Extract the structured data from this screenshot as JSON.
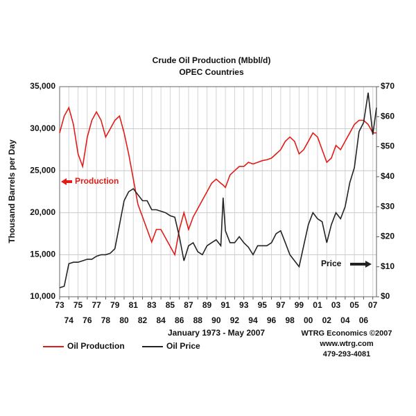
{
  "chart_data": {
    "type": "line",
    "title": "Crude Oil Production (Mbbl/d)",
    "subtitle": "OPEC Countries",
    "y_label": "Thousand Barrels per Day",
    "x_label": "January 1973 - May 2007",
    "annotations": [
      "Production",
      "Price"
    ],
    "source": [
      "WTRG Economics ©2007",
      "www.wtrg.com",
      "479-293-4081"
    ],
    "grid": true,
    "x": [
      1973,
      1973.5,
      1974,
      1974.5,
      1975,
      1975.5,
      1976,
      1976.5,
      1977,
      1977.5,
      1978,
      1978.5,
      1979,
      1979.5,
      1980,
      1980.5,
      1981,
      1981.5,
      1982,
      1982.5,
      1983,
      1983.5,
      1984,
      1984.5,
      1985,
      1985.5,
      1986,
      1986.5,
      1987,
      1987.5,
      1988,
      1988.5,
      1989,
      1989.5,
      1990,
      1990.5,
      1990.75,
      1991,
      1991.5,
      1992,
      1992.5,
      1993,
      1993.5,
      1994,
      1994.5,
      1995,
      1995.5,
      1996,
      1996.5,
      1997,
      1997.5,
      1998,
      1998.5,
      1999,
      1999.5,
      2000,
      2000.5,
      2001,
      2001.5,
      2002,
      2002.5,
      2003,
      2003.5,
      2004,
      2004.5,
      2005,
      2005.5,
      2006,
      2006.5,
      2007,
      2007.4
    ],
    "series": [
      {
        "name": "Oil Production",
        "color": "#e21b16",
        "values": [
          29500,
          31500,
          32500,
          30500,
          27000,
          25500,
          29000,
          31000,
          32000,
          31000,
          29000,
          30000,
          31000,
          31500,
          29500,
          27000,
          24000,
          21000,
          19500,
          18000,
          16500,
          18000,
          18000,
          17000,
          16000,
          15000,
          18000,
          20000,
          18000,
          19500,
          20500,
          21500,
          22500,
          23500,
          24000,
          23500,
          23300,
          23000,
          24500,
          25000,
          25500,
          25500,
          26000,
          25800,
          26000,
          26200,
          26300,
          26500,
          27000,
          27500,
          28500,
          29000,
          28500,
          27000,
          27500,
          28500,
          29500,
          29000,
          27500,
          26000,
          26500,
          28000,
          27500,
          28500,
          29500,
          30500,
          31000,
          31000,
          30500,
          29500,
          29500
        ]
      },
      {
        "name": "Oil Price",
        "color": "#222222",
        "axis": "y2",
        "values": [
          3,
          3.5,
          11,
          11.5,
          11.5,
          12,
          12.5,
          12.5,
          13.5,
          14,
          14,
          14.5,
          16,
          24,
          32,
          35,
          36,
          34,
          32,
          32,
          29,
          29,
          28.5,
          28,
          27,
          26.5,
          20,
          12,
          17,
          18,
          15,
          14,
          17,
          18,
          19,
          17,
          33,
          22,
          18,
          18,
          20,
          18,
          16.5,
          14,
          17,
          17,
          17,
          18,
          21,
          22,
          18,
          14,
          12,
          10,
          17,
          24,
          28,
          26,
          25,
          18,
          24,
          28,
          26,
          30,
          38,
          43,
          55,
          58,
          68,
          54,
          63
        ]
      }
    ],
    "xlim": [
      1973,
      2007.4
    ],
    "xticks": [
      {
        "value": 1973,
        "label": "73"
      },
      {
        "value": 1974,
        "label": "74"
      },
      {
        "value": 1975,
        "label": "75"
      },
      {
        "value": 1976,
        "label": "76"
      },
      {
        "value": 1977,
        "label": "77"
      },
      {
        "value": 1978,
        "label": "78"
      },
      {
        "value": 1979,
        "label": "79"
      },
      {
        "value": 1980,
        "label": "80"
      },
      {
        "value": 1981,
        "label": "81"
      },
      {
        "value": 1982,
        "label": "82"
      },
      {
        "value": 1983,
        "label": "83"
      },
      {
        "value": 1984,
        "label": "84"
      },
      {
        "value": 1985,
        "label": "85"
      },
      {
        "value": 1986,
        "label": "86"
      },
      {
        "value": 1987,
        "label": "87"
      },
      {
        "value": 1988,
        "label": "88"
      },
      {
        "value": 1989,
        "label": "89"
      },
      {
        "value": 1990,
        "label": "90"
      },
      {
        "value": 1991,
        "label": "91"
      },
      {
        "value": 1992,
        "label": "92"
      },
      {
        "value": 1993,
        "label": "93"
      },
      {
        "value": 1994,
        "label": "94"
      },
      {
        "value": 1995,
        "label": "95"
      },
      {
        "value": 1996,
        "label": "96"
      },
      {
        "value": 1997,
        "label": "97"
      },
      {
        "value": 1998,
        "label": "98"
      },
      {
        "value": 1999,
        "label": "99"
      },
      {
        "value": 2000,
        "label": "00"
      },
      {
        "value": 2001,
        "label": "01"
      },
      {
        "value": 2002,
        "label": "02"
      },
      {
        "value": 2003,
        "label": "03"
      },
      {
        "value": 2004,
        "label": "04"
      },
      {
        "value": 2005,
        "label": "05"
      },
      {
        "value": 2006,
        "label": "06"
      },
      {
        "value": 2007,
        "label": "07"
      }
    ],
    "ylim": [
      10000,
      35000
    ],
    "yticks": [
      {
        "value": 10000,
        "label": "10,000"
      },
      {
        "value": 15000,
        "label": "15,000"
      },
      {
        "value": 20000,
        "label": "20,000"
      },
      {
        "value": 25000,
        "label": "25,000"
      },
      {
        "value": 30000,
        "label": "30,000"
      },
      {
        "value": 35000,
        "label": "35,000"
      }
    ],
    "y2lim": [
      0,
      70
    ],
    "y2ticks": [
      {
        "value": 0,
        "label": "$0"
      },
      {
        "value": 10,
        "label": "$10"
      },
      {
        "value": 20,
        "label": "$20"
      },
      {
        "value": 30,
        "label": "$30"
      },
      {
        "value": 40,
        "label": "$40"
      },
      {
        "value": 50,
        "label": "$50"
      },
      {
        "value": 60,
        "label": "$60"
      },
      {
        "value": 70,
        "label": "$70"
      }
    ]
  }
}
